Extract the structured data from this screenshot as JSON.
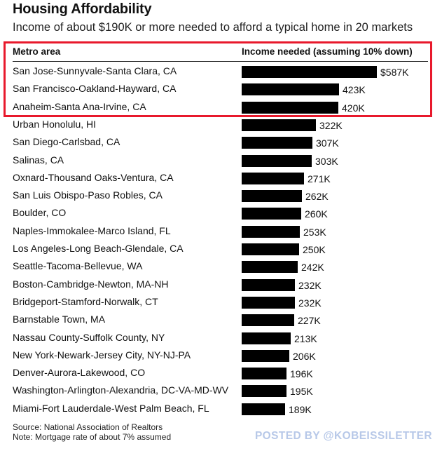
{
  "chart_data": {
    "type": "bar",
    "orientation": "horizontal",
    "title": "Housing Affordability",
    "subtitle": "Income of about $190K or more needed to afford a typical home in 20 markets",
    "category_header": "Metro area",
    "value_header": "Income needed (assuming 10% down)",
    "unit": "K",
    "categories": [
      "San Jose-Sunnyvale-Santa Clara, CA",
      "San Francisco-Oakland-Hayward, CA",
      "Anaheim-Santa Ana-Irvine, CA",
      "Urban Honolulu, HI",
      "San Diego-Carlsbad, CA",
      "Salinas, CA",
      "Oxnard-Thousand Oaks-Ventura, CA",
      "San Luis Obispo-Paso Robles, CA",
      "Boulder, CO",
      "Naples-Immokalee-Marco Island, FL",
      "Los Angeles-Long Beach-Glendale, CA",
      "Seattle-Tacoma-Bellevue, WA",
      "Boston-Cambridge-Newton, MA-NH",
      "Bridgeport-Stamford-Norwalk, CT",
      "Barnstable Town, MA",
      "Nassau County-Suffolk County, NY",
      "New York-Newark-Jersey City, NY-NJ-PA",
      "Denver-Aurora-Lakewood, CO",
      "Washington-Arlington-Alexandria, DC-VA-MD-WV",
      "Miami-Fort Lauderdale-West Palm Beach, FL"
    ],
    "values": [
      587,
      423,
      420,
      322,
      307,
      303,
      271,
      262,
      260,
      253,
      250,
      242,
      232,
      232,
      227,
      213,
      206,
      196,
      195,
      189
    ],
    "value_labels": [
      "$587K",
      "423K",
      "420K",
      "322K",
      "307K",
      "303K",
      "271K",
      "262K",
      "260K",
      "253K",
      "250K",
      "242K",
      "232K",
      "232K",
      "227K",
      "213K",
      "206K",
      "196K",
      "195K",
      "189K"
    ],
    "highlighted_rows": [
      0,
      1,
      2
    ],
    "bar_color": "#000000",
    "highlight_color": "#e8192c",
    "grid": false,
    "legend": "none"
  },
  "source_note": "Source: National Association of Realtors",
  "footnote": "Note: Mortgage rate of about 7% assumed",
  "watermark": "POSTED BY @KOBEISSILETTER"
}
